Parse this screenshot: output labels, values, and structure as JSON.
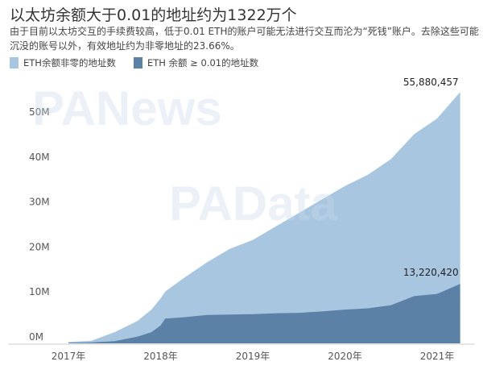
{
  "title": "以太坊余额大于0.01的地址约为1322万个",
  "subtitle": "由于目前以太坊交互的手续费较高，低于0.01 ETH的账户可能无法进行交互而沦为“死钱”账户。去除这些可能沉没的账号以外，有效地址约为非零地址的23.66%。",
  "watermarks": [
    "PANews",
    "PAData"
  ],
  "chart_data": {
    "type": "area",
    "title": "以太坊余额大于0.01的地址约为1322万个",
    "xlabel": "",
    "ylabel": "",
    "x_ticks": [
      "2017年",
      "2018年",
      "2019年",
      "2020年",
      "2021年"
    ],
    "y_ticks": [
      "0M",
      "10M",
      "20M",
      "30M",
      "40M",
      "50M"
    ],
    "ylim": [
      0,
      58000000
    ],
    "grid": false,
    "legend": "top-left",
    "x": [
      2017.0,
      2017.25,
      2017.5,
      2017.75,
      2017.9,
      2018.0,
      2018.05,
      2018.25,
      2018.5,
      2018.75,
      2019.0,
      2019.25,
      2019.5,
      2019.75,
      2020.0,
      2020.25,
      2020.5,
      2020.75,
      2021.0,
      2021.25
    ],
    "series": [
      {
        "name": "ETH余额非零的地址数",
        "color": "#a9c6e0",
        "values": [
          300000,
          600000,
          2500000,
          5000000,
          7500000,
          10000000,
          11500000,
          14500000,
          18000000,
          21000000,
          23000000,
          26000000,
          29000000,
          32000000,
          35000000,
          37500000,
          41000000,
          46500000,
          50000000,
          55880457
        ]
      },
      {
        "name": "ETH 余额 ≥ 0.01的地址数",
        "color": "#5b81a6",
        "values": [
          100000,
          200000,
          500000,
          1500000,
          2500000,
          4000000,
          5500000,
          5800000,
          6300000,
          6400000,
          6500000,
          6700000,
          6800000,
          7100000,
          7500000,
          7800000,
          8500000,
          10500000,
          11000000,
          13220420
        ]
      }
    ],
    "annotations": [
      "55,880,457",
      "13,220,420"
    ]
  }
}
